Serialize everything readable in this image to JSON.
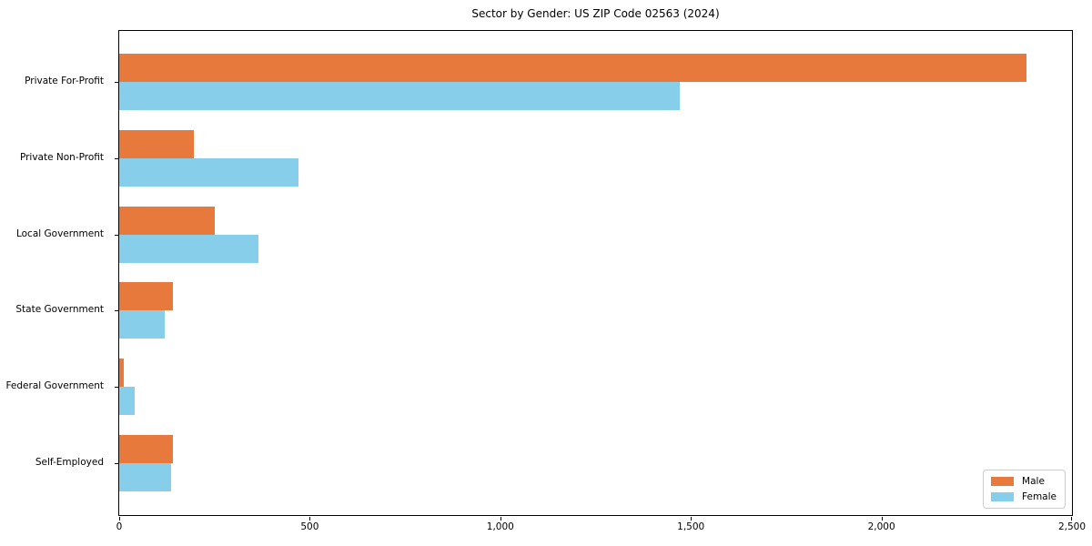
{
  "title": "Sector by Gender: US ZIP Code 02563 (2024)",
  "chart_data": {
    "type": "bar",
    "orientation": "horizontal",
    "title": "Sector by Gender: US ZIP Code 02563 (2024)",
    "categories": [
      "Private For-Profit",
      "Private Non-Profit",
      "Local Government",
      "State Government",
      "Federal Government",
      "Self-Employed"
    ],
    "series": [
      {
        "name": "Male",
        "color": "#e8793d",
        "values": [
          2380,
          195,
          250,
          140,
          12,
          140
        ]
      },
      {
        "name": "Female",
        "color": "#87ceeb",
        "values": [
          1470,
          470,
          365,
          120,
          40,
          135
        ]
      }
    ],
    "xlabel": "",
    "ylabel": "",
    "xlim": [
      0,
      2500
    ],
    "x_tick_values": [
      0,
      500,
      1000,
      1500,
      2000,
      2500
    ],
    "x_tick_labels": [
      "0",
      "500",
      "1,000",
      "1,500",
      "2,000",
      "2,500"
    ],
    "grid": false,
    "legend": {
      "position": "lower right",
      "entries": [
        "Male",
        "Female"
      ]
    }
  }
}
